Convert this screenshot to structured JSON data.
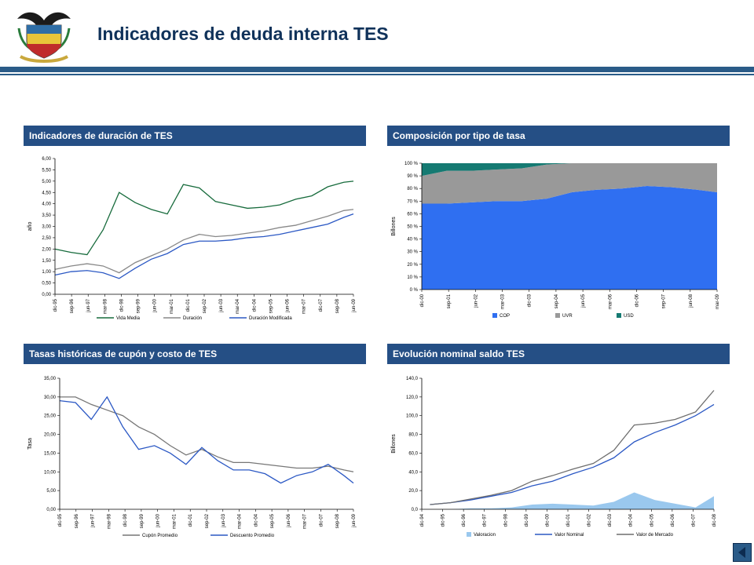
{
  "page": {
    "title": "Indicadores de deuda interna TES"
  },
  "charts": [
    {
      "id": "duracion",
      "header": "Indicadores de duración de TES",
      "chart_data": {
        "type": "line",
        "ylabel": "año",
        "xlabel": "",
        "ylim": [
          0,
          6
        ],
        "yticks": [
          "0,00",
          "0,50",
          "1,00",
          "1,50",
          "2,00",
          "2,50",
          "3,00",
          "3,50",
          "4,00",
          "4,50",
          "5,00",
          "5,50",
          "6,00"
        ],
        "xticks": [
          "dic-95",
          "sep-96",
          "jun-97",
          "mar-98",
          "dic-98",
          "sep-99",
          "jun-00",
          "mar-01",
          "dic-01",
          "sep-02",
          "jun-03",
          "mar-04",
          "dic-04",
          "sep-05",
          "jun-06",
          "mar-07",
          "dic-07",
          "sep-08",
          "jun-09"
        ],
        "x": [
          0,
          1,
          2,
          3,
          4,
          5,
          6,
          7,
          8,
          9,
          10,
          11,
          12,
          13,
          14,
          15,
          16,
          17,
          18,
          18.6
        ],
        "series": [
          {
            "name": "Vida Media",
            "color": "#176b3c",
            "values": [
              2.0,
              1.85,
              1.75,
              2.85,
              4.5,
              4.05,
              3.75,
              3.55,
              4.85,
              4.7,
              4.1,
              3.95,
              3.8,
              3.85,
              3.95,
              4.2,
              4.35,
              4.75,
              4.95,
              5.0
            ]
          },
          {
            "name": "Duración",
            "color": "#888888",
            "values": [
              1.1,
              1.25,
              1.35,
              1.25,
              0.95,
              1.4,
              1.7,
              2.0,
              2.4,
              2.65,
              2.55,
              2.6,
              2.7,
              2.8,
              2.95,
              3.05,
              3.25,
              3.45,
              3.7,
              3.75
            ]
          },
          {
            "name": "Duración Modificada",
            "color": "#2b58c4",
            "values": [
              0.85,
              1.0,
              1.05,
              0.95,
              0.7,
              1.15,
              1.55,
              1.8,
              2.2,
              2.35,
              2.35,
              2.4,
              2.5,
              2.55,
              2.65,
              2.8,
              2.95,
              3.1,
              3.4,
              3.55
            ]
          }
        ],
        "legend": "bottom"
      }
    },
    {
      "id": "composicion",
      "header": "Composición por tipo de tasa",
      "chart_data": {
        "type": "area",
        "ylabel": "Billones",
        "xlabel": "",
        "ylim": [
          0,
          100
        ],
        "yticks": [
          "0 %",
          "10 %",
          "20 %",
          "30 %",
          "40 %",
          "50 %",
          "60 %",
          "70 %",
          "80 %",
          "90 %",
          "100 %"
        ],
        "xticks": [
          "dic-00",
          "sep-01",
          "jun-02",
          "mar-03",
          "dic-03",
          "sep-04",
          "jun-05",
          "mar-06",
          "dic-06",
          "sep-07",
          "jun-08",
          "mar-09"
        ],
        "x": [
          0,
          1,
          2,
          3,
          4,
          5,
          6,
          7,
          8,
          9,
          10,
          11,
          11.8
        ],
        "series": [
          {
            "name": "COP",
            "color": "#2f6ff1",
            "values": [
              68,
              68,
              69,
              70,
              70,
              72,
              77,
              79,
              80,
              82,
              81,
              79,
              77
            ]
          },
          {
            "name": "UVR",
            "color": "#999999",
            "values": [
              22,
              26,
              25,
              25,
              26,
              27,
              23,
              21,
              20,
              18,
              19,
              21,
              23
            ]
          },
          {
            "name": "USD",
            "color": "#157a72",
            "values": [
              10,
              6,
              6,
              5,
              4,
              1,
              0,
              0,
              0,
              0,
              0,
              0,
              0
            ]
          }
        ],
        "stacked": true,
        "legend": "bottom"
      }
    },
    {
      "id": "tasas",
      "header": "Tasas históricas de cupón y costo de TES",
      "chart_data": {
        "type": "line",
        "ylabel": "Tasa",
        "xlabel": "",
        "ylim": [
          0,
          35
        ],
        "yticks": [
          "0,00",
          "5,00",
          "10,00",
          "15,00",
          "20,00",
          "25,00",
          "30,00",
          "35,00"
        ],
        "xticks": [
          "dic-95",
          "sep-96",
          "jun-97",
          "mar-98",
          "dic-98",
          "sep-99",
          "jun-00",
          "mar-01",
          "dic-01",
          "sep-02",
          "jun-03",
          "mar-04",
          "dic-04",
          "sep-05",
          "jun-06",
          "mar-07",
          "dic-07",
          "sep-08",
          "jun-09"
        ],
        "x": [
          0,
          1,
          2,
          3,
          4,
          5,
          6,
          7,
          8,
          9,
          10,
          11,
          12,
          13,
          14,
          15,
          16,
          17,
          18,
          18.6
        ],
        "series": [
          {
            "name": "Cupón Promedio",
            "color": "#777777",
            "values": [
              30,
              30,
              28,
              26.5,
              25,
              22,
              20,
              17,
              14.5,
              16,
              14,
              12.5,
              12.5,
              12,
              11.5,
              11,
              11,
              11.5,
              10.5,
              10
            ]
          },
          {
            "name": "Descuento Promedio",
            "color": "#2b58c4",
            "values": [
              29,
              28.5,
              24,
              30,
              22,
              16,
              17,
              15,
              12,
              16.5,
              13,
              10.5,
              10.5,
              9.5,
              7,
              9,
              10,
              12,
              9,
              7
            ]
          }
        ],
        "legend": "bottom"
      }
    },
    {
      "id": "saldo",
      "header": "Evolución nominal saldo TES",
      "chart_data": {
        "type": "line",
        "ylabel": "Billones",
        "xlabel": "",
        "ylim": [
          0,
          140
        ],
        "yticks": [
          "0,0",
          "20,0",
          "40,0",
          "60,0",
          "80,0",
          "100,0",
          "120,0",
          "140,0"
        ],
        "xticks": [
          "dic-94",
          "dic-95",
          "dic-96",
          "dic-97",
          "dic-98",
          "dic-99",
          "dic-00",
          "dic-01",
          "dic-02",
          "dic-03",
          "dic-04",
          "dic-05",
          "dic-06",
          "dic-07",
          "dic-08"
        ],
        "x": [
          1,
          2,
          3,
          4,
          5,
          6,
          7,
          8,
          9,
          10,
          11,
          12,
          13,
          14,
          14.9
        ],
        "series": [
          {
            "name": "Valoracion",
            "color": "#9ac8ee",
            "type": "area",
            "values": [
              0,
              0,
              1,
              1,
              2,
              5,
              6,
              5,
              4,
              8,
              18,
              10,
              6,
              2,
              14
            ]
          },
          {
            "name": "Valor Nominal",
            "color": "#2b58c4",
            "values": [
              5,
              7,
              10,
              14,
              18,
              25,
              30,
              38,
              45,
              55,
              72,
              82,
              90,
              100,
              112
            ]
          },
          {
            "name": "Valor de Mercado",
            "color": "#6e6e6e",
            "values": [
              5,
              7,
              11,
              15,
              20,
              30,
              36,
              43,
              49,
              63,
              90,
              92,
              96,
              104,
              127
            ]
          }
        ],
        "legend": "bottom"
      }
    }
  ],
  "nav": {
    "icon": "triangle-left-icon"
  }
}
